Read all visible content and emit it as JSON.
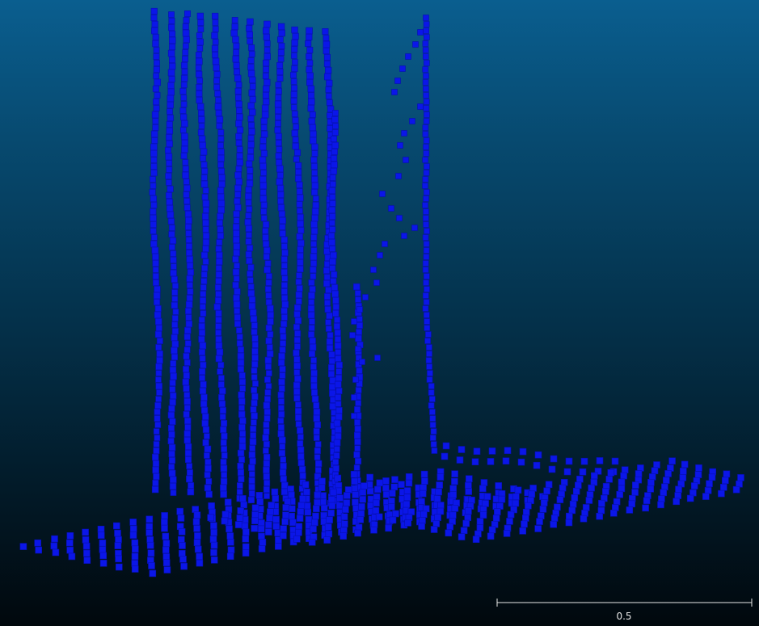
{
  "viewer": {
    "background_top": "#0a5e8f",
    "background_bottom": "#01080d",
    "point_color": "#0b16e8",
    "point_shape": "square"
  },
  "scale_bar": {
    "label": "0.5"
  }
}
